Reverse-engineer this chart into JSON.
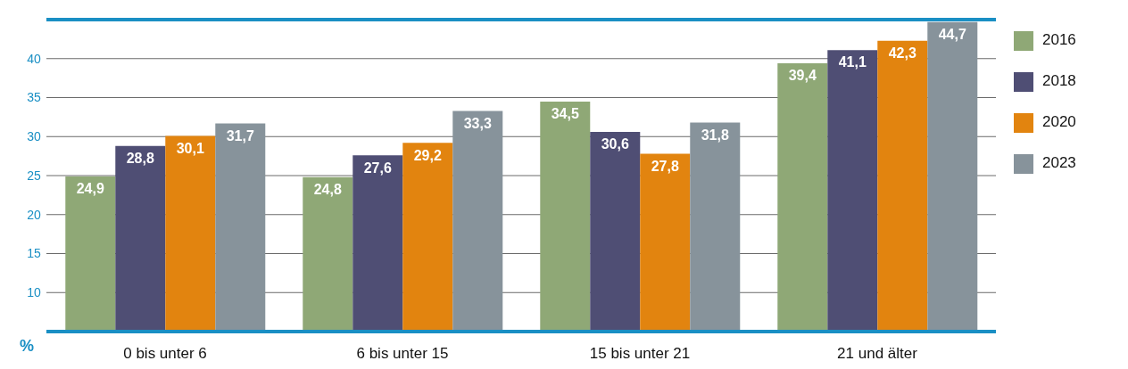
{
  "chart_data": {
    "type": "bar",
    "ylabel": "%",
    "categories": [
      "0 bis unter 6",
      "6 bis unter 15",
      "15 bis unter 21",
      "21 und älter"
    ],
    "series": [
      {
        "name": "2016",
        "color": "#8fa876",
        "values": [
          24.9,
          24.8,
          34.5,
          39.4
        ],
        "value_labels": [
          "24,9",
          "24,8",
          "34,5",
          "39,4"
        ]
      },
      {
        "name": "2018",
        "color": "#4f4e74",
        "values": [
          28.8,
          27.6,
          30.6,
          41.1
        ],
        "value_labels": [
          "28,8",
          "27,6",
          "30,6",
          "41,1"
        ]
      },
      {
        "name": "2020",
        "color": "#e2840f",
        "values": [
          30.1,
          29.2,
          27.8,
          42.3
        ],
        "value_labels": [
          "30,1",
          "29,2",
          "27,8",
          "42,3"
        ]
      },
      {
        "name": "2023",
        "color": "#87939b",
        "values": [
          31.7,
          33.3,
          31.8,
          44.7
        ],
        "value_labels": [
          "31,7",
          "33,3",
          "31,8",
          "44,7"
        ]
      }
    ],
    "ylim": [
      5,
      45
    ],
    "yticks": [
      10,
      15,
      20,
      25,
      30,
      35,
      40
    ],
    "grid": "y",
    "legend": "right"
  }
}
